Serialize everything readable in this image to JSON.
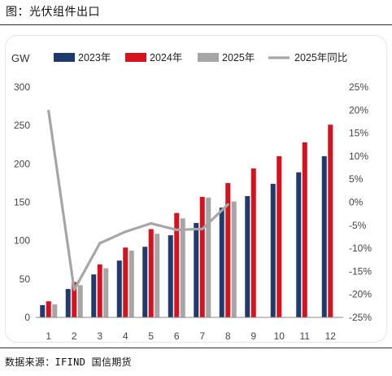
{
  "title": "图：光伏组件出口",
  "source": "数据来源：IFIND 国信期货",
  "colors": {
    "2023": "#1f3a6d",
    "2024": "#d8111e",
    "2025": "#a6a6a6",
    "2025yoy": "#a6a6a6"
  },
  "chart_data": {
    "type": "bar",
    "ylabel": "GW",
    "categories": [
      "1",
      "2",
      "3",
      "4",
      "5",
      "6",
      "7",
      "8",
      "9",
      "10",
      "11",
      "12"
    ],
    "ylim": [
      0,
      300
    ],
    "yticks": [
      "0",
      "50",
      "100",
      "150",
      "200",
      "250",
      "300"
    ],
    "y2lim": [
      -25,
      25
    ],
    "y2ticks": [
      "25%",
      "20%",
      "15%",
      "10%",
      "5%",
      "0%",
      "-5%",
      "-10%",
      "-15%",
      "-20%",
      "-25%"
    ],
    "series": [
      {
        "name": "2023年",
        "type": "bar",
        "values": [
          16,
          37,
          56,
          74,
          92,
          107,
          123,
          143,
          158,
          174,
          189,
          210
        ]
      },
      {
        "name": "2024年",
        "type": "bar",
        "values": [
          21,
          46,
          69,
          91,
          115,
          136,
          157,
          175,
          194,
          210,
          228,
          251
        ]
      },
      {
        "name": "2025年",
        "type": "bar",
        "values": [
          17,
          42,
          64,
          87,
          109,
          129,
          156,
          151,
          null,
          null,
          null,
          null
        ]
      },
      {
        "name": "2025年同比",
        "type": "line",
        "axis": "right",
        "values": [
          19.8,
          -19.0,
          -8.9,
          -6.4,
          -4.6,
          -6.0,
          -5.8,
          -0.5,
          null,
          null,
          null,
          null
        ]
      }
    ],
    "legend_position": "top",
    "grid": false
  }
}
